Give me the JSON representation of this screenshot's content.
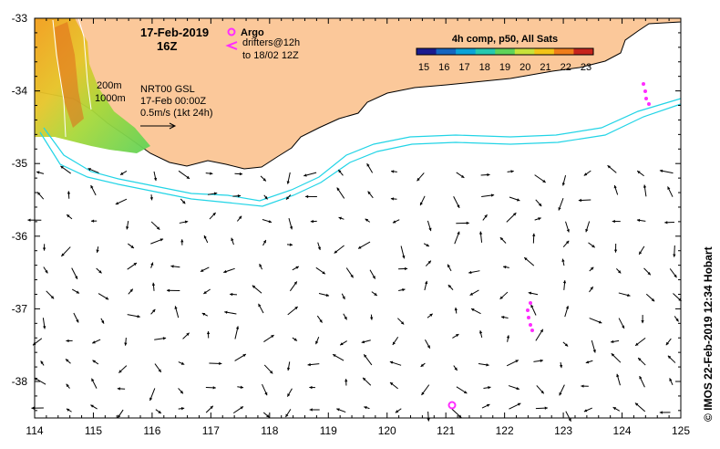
{
  "title": {
    "date": "17-Feb-2019",
    "hour": "16Z"
  },
  "legend": {
    "argo_label": "Argo",
    "drifters_line1": "drifters@12h",
    "drifters_line2": "to 18/02 12Z"
  },
  "colorbar": {
    "title": "4h comp, p50, All Sats",
    "ticks": [
      "15",
      "16",
      "17",
      "18",
      "19",
      "20",
      "21",
      "22",
      "23"
    ],
    "colors": [
      "#1b1b8f",
      "#1565c0",
      "#0aa3d8",
      "#25c9b0",
      "#5fd35a",
      "#c8e23a",
      "#f2c418",
      "#ef7d1a",
      "#c6241c"
    ]
  },
  "contours": {
    "label_200": "200m",
    "label_1000": "1000m",
    "color": "#22d4e6"
  },
  "product": {
    "line1": "NRT00 GSL",
    "line2": "17-Feb 00:00Z",
    "line3": "0.5m/s (1kt 24h)"
  },
  "axes": {
    "lon_ticks": [
      "114",
      "115",
      "116",
      "117",
      "118",
      "119",
      "120",
      "121",
      "122",
      "123",
      "124",
      "125"
    ],
    "lat_ticks": [
      "-33",
      "-34",
      "-35",
      "-36",
      "-37",
      "-38"
    ]
  },
  "credit": "© IMOS 22-Feb-2019 12:34 Hobart",
  "colors": {
    "land": "#fbc89a",
    "argo": "#ff2cff",
    "arrows": "#000000"
  },
  "icons": [
    "argo-float-marker-icon",
    "drifter-chevron-icon",
    "scale-arrow-icon"
  ]
}
